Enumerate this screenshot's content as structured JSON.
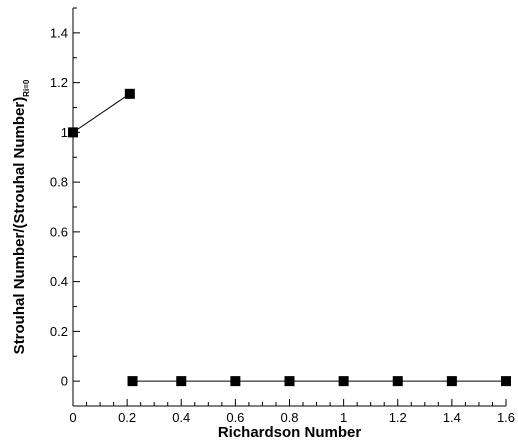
{
  "chart_data": {
    "type": "line",
    "xlabel": "Richardson Number",
    "ylabel": "Strouhal Number/(Strouhal Number)",
    "ylabel_subscript": "Ri=0",
    "xlim": [
      0,
      1.6
    ],
    "ylim": [
      -0.1,
      1.5
    ],
    "x_ticks": [
      "0",
      "0.2",
      "0.4",
      "0.6",
      "0.8",
      "1",
      "1.2",
      "1.4",
      "1.6"
    ],
    "y_ticks": [
      "0",
      "0.2",
      "0.4",
      "0.6",
      "0.8",
      "1",
      "1.2",
      "1.4"
    ],
    "grid": false,
    "legend": "none",
    "series": [
      {
        "segments": [
          [
            [
              0.0,
              1.0
            ],
            [
              0.21,
              1.155
            ]
          ],
          [
            [
              0.22,
              0.0
            ],
            [
              0.4,
              0.0
            ],
            [
              0.6,
              0.0
            ],
            [
              0.8,
              0.0
            ],
            [
              1.0,
              0.0
            ],
            [
              1.2,
              0.0
            ],
            [
              1.4,
              0.0
            ],
            [
              1.6,
              0.0
            ]
          ]
        ]
      }
    ],
    "colors": {
      "line": "#000000",
      "marker": "#000000",
      "axis": "#000000"
    }
  }
}
